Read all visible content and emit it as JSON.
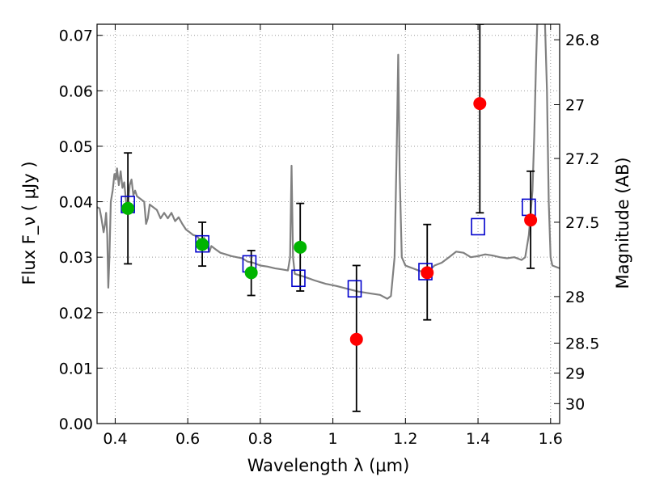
{
  "chart_data": {
    "type": "scatter",
    "xlabel": "Wavelength  λ (μm)",
    "ylabel": "Flux  F_ν  ( μJy )",
    "ylabel_right": "Magnitude (AB)",
    "xlim": [
      0.35,
      1.625
    ],
    "ylim": [
      0.0,
      0.072
    ],
    "grid": true,
    "x_ticks": [
      0.4,
      0.6,
      0.8,
      1.0,
      1.2,
      1.4,
      1.6
    ],
    "x_tick_labels": [
      "0.4",
      "0.6",
      "0.8",
      "1",
      "1.2",
      "1.4",
      "1.6"
    ],
    "y_ticks": [
      0.0,
      0.01,
      0.02,
      0.03,
      0.04,
      0.05,
      0.06,
      0.07
    ],
    "y_tick_labels": [
      "0.00",
      "0.01",
      "0.02",
      "0.03",
      "0.04",
      "0.05",
      "0.06",
      "0.07"
    ],
    "right_ticks": [
      {
        "label": "26.8",
        "flux": 0.0692
      },
      {
        "label": "27",
        "flux": 0.0575
      },
      {
        "label": "27.2",
        "flux": 0.0478
      },
      {
        "label": "27.5",
        "flux": 0.0363
      },
      {
        "label": "28",
        "flux": 0.0229
      },
      {
        "label": "28.5",
        "flux": 0.0145
      },
      {
        "label": "29",
        "flux": 0.0091
      },
      {
        "label": "30",
        "flux": 0.0036
      }
    ],
    "colors": {
      "model": "#808080",
      "ground": "#00b400",
      "hst": "#ff0000",
      "model_box": "#0000cc",
      "errorbar": "#000000",
      "grid": "#999999"
    },
    "model_spectrum": [
      [
        0.35,
        0.039
      ],
      [
        0.357,
        0.0388
      ],
      [
        0.362,
        0.037
      ],
      [
        0.368,
        0.0345
      ],
      [
        0.372,
        0.036
      ],
      [
        0.375,
        0.038
      ],
      [
        0.378,
        0.034
      ],
      [
        0.381,
        0.0245
      ],
      [
        0.384,
        0.03
      ],
      [
        0.388,
        0.04
      ],
      [
        0.393,
        0.042
      ],
      [
        0.398,
        0.045
      ],
      [
        0.402,
        0.044
      ],
      [
        0.405,
        0.046
      ],
      [
        0.41,
        0.043
      ],
      [
        0.415,
        0.0455
      ],
      [
        0.42,
        0.0425
      ],
      [
        0.425,
        0.0435
      ],
      [
        0.43,
        0.04
      ],
      [
        0.435,
        0.039
      ],
      [
        0.44,
        0.043
      ],
      [
        0.445,
        0.044
      ],
      [
        0.45,
        0.0412
      ],
      [
        0.455,
        0.042
      ],
      [
        0.46,
        0.041
      ],
      [
        0.47,
        0.0405
      ],
      [
        0.48,
        0.04
      ],
      [
        0.485,
        0.036
      ],
      [
        0.49,
        0.037
      ],
      [
        0.495,
        0.0395
      ],
      [
        0.505,
        0.039
      ],
      [
        0.515,
        0.0385
      ],
      [
        0.525,
        0.037
      ],
      [
        0.535,
        0.038
      ],
      [
        0.545,
        0.037
      ],
      [
        0.555,
        0.038
      ],
      [
        0.565,
        0.0365
      ],
      [
        0.575,
        0.0372
      ],
      [
        0.585,
        0.036
      ],
      [
        0.595,
        0.035
      ],
      [
        0.605,
        0.0345
      ],
      [
        0.615,
        0.034
      ],
      [
        0.625,
        0.0338
      ],
      [
        0.635,
        0.033
      ],
      [
        0.645,
        0.0335
      ],
      [
        0.655,
        0.0318
      ],
      [
        0.66,
        0.031
      ],
      [
        0.665,
        0.032
      ],
      [
        0.675,
        0.0315
      ],
      [
        0.69,
        0.0308
      ],
      [
        0.705,
        0.0305
      ],
      [
        0.72,
        0.0302
      ],
      [
        0.735,
        0.03
      ],
      [
        0.75,
        0.0298
      ],
      [
        0.765,
        0.0292
      ],
      [
        0.78,
        0.029
      ],
      [
        0.8,
        0.0285
      ],
      [
        0.82,
        0.0283
      ],
      [
        0.84,
        0.028
      ],
      [
        0.86,
        0.0278
      ],
      [
        0.876,
        0.0276
      ],
      [
        0.882,
        0.03
      ],
      [
        0.886,
        0.0465
      ],
      [
        0.89,
        0.03
      ],
      [
        0.895,
        0.027
      ],
      [
        0.92,
        0.0265
      ],
      [
        0.95,
        0.0258
      ],
      [
        0.98,
        0.0252
      ],
      [
        1.01,
        0.0248
      ],
      [
        1.04,
        0.0243
      ],
      [
        1.07,
        0.0238
      ],
      [
        1.1,
        0.0235
      ],
      [
        1.13,
        0.0232
      ],
      [
        1.15,
        0.0225
      ],
      [
        1.16,
        0.023
      ],
      [
        1.17,
        0.03
      ],
      [
        1.176,
        0.05
      ],
      [
        1.18,
        0.0665
      ],
      [
        1.184,
        0.045
      ],
      [
        1.19,
        0.03
      ],
      [
        1.2,
        0.0285
      ],
      [
        1.22,
        0.028
      ],
      [
        1.24,
        0.0275
      ],
      [
        1.26,
        0.0272
      ],
      [
        1.28,
        0.0285
      ],
      [
        1.3,
        0.029
      ],
      [
        1.32,
        0.03
      ],
      [
        1.34,
        0.031
      ],
      [
        1.36,
        0.0308
      ],
      [
        1.38,
        0.03
      ],
      [
        1.4,
        0.0302
      ],
      [
        1.42,
        0.0305
      ],
      [
        1.44,
        0.0303
      ],
      [
        1.46,
        0.03
      ],
      [
        1.48,
        0.0298
      ],
      [
        1.5,
        0.03
      ],
      [
        1.52,
        0.0295
      ],
      [
        1.53,
        0.03
      ],
      [
        1.54,
        0.034
      ],
      [
        1.55,
        0.042
      ],
      [
        1.555,
        0.052
      ],
      [
        1.56,
        0.065
      ],
      [
        1.565,
        0.076
      ],
      [
        1.575,
        0.085
      ],
      [
        1.582,
        0.078
      ],
      [
        1.59,
        0.06
      ],
      [
        1.595,
        0.04
      ],
      [
        1.6,
        0.03
      ],
      [
        1.605,
        0.0285
      ],
      [
        1.625,
        0.028
      ]
    ],
    "model_points": [
      {
        "x": 0.435,
        "y": 0.0395
      },
      {
        "x": 0.64,
        "y": 0.0324
      },
      {
        "x": 0.77,
        "y": 0.0288
      },
      {
        "x": 0.905,
        "y": 0.0262
      },
      {
        "x": 1.06,
        "y": 0.0243
      },
      {
        "x": 1.255,
        "y": 0.0274
      },
      {
        "x": 1.4,
        "y": 0.0355
      },
      {
        "x": 1.54,
        "y": 0.039
      }
    ],
    "series": [
      {
        "points": [
          {
            "x": 0.435,
            "y": 0.0388,
            "err_low": 0.01,
            "err_high": 0.01
          },
          {
            "x": 0.64,
            "y": 0.0323,
            "err_low": 0.0039,
            "err_high": 0.004
          },
          {
            "x": 0.775,
            "y": 0.0272,
            "err_low": 0.0041,
            "err_high": 0.004
          },
          {
            "x": 0.91,
            "y": 0.0318,
            "err_low": 0.0079,
            "err_high": 0.0079
          }
        ]
      },
      {
        "points": [
          {
            "x": 1.065,
            "y": 0.0152,
            "err_low": 0.013,
            "err_high": 0.0133
          },
          {
            "x": 1.26,
            "y": 0.0272,
            "err_low": 0.0085,
            "err_high": 0.0087
          },
          {
            "x": 1.405,
            "y": 0.0577,
            "err_low": 0.0197,
            "err_high": 0.0143
          },
          {
            "x": 1.545,
            "y": 0.0367,
            "err_low": 0.0087,
            "err_high": 0.0088
          }
        ]
      }
    ]
  }
}
